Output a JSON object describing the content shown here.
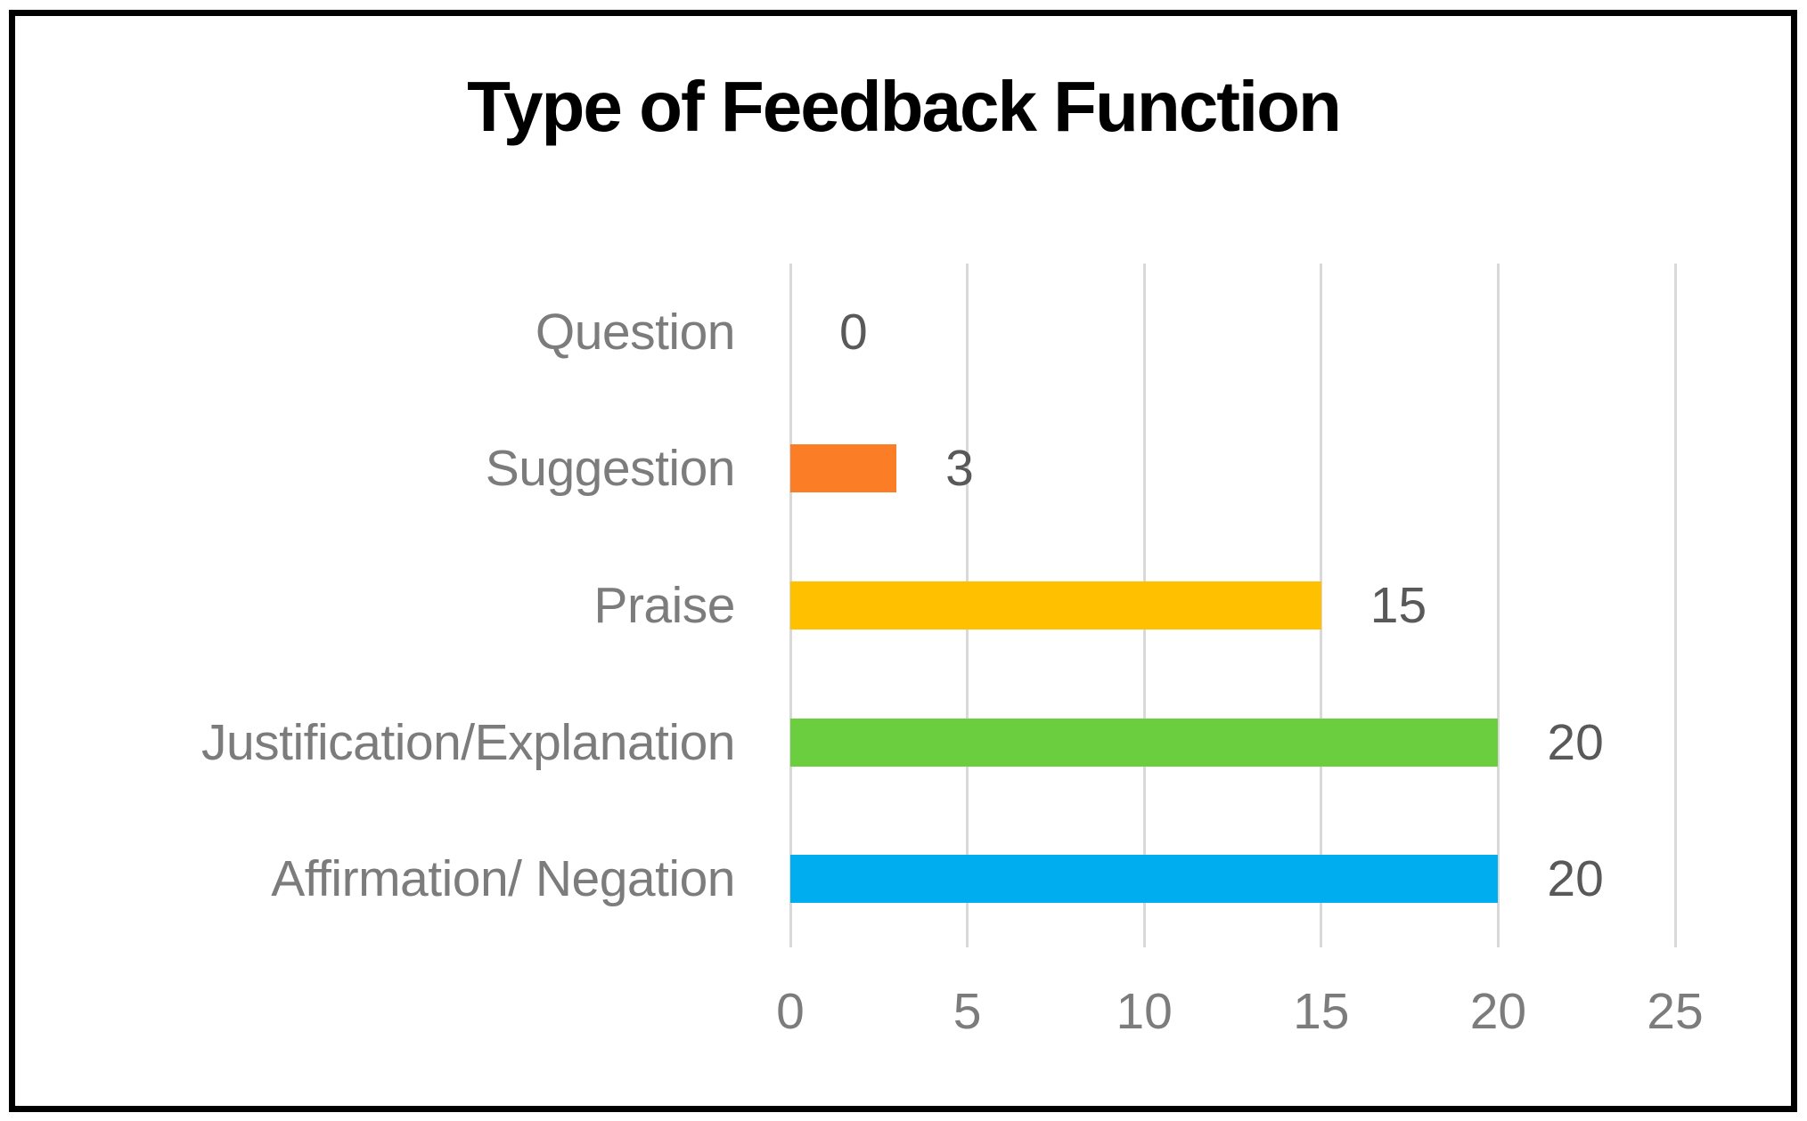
{
  "page": {
    "background": "#FFFFFF",
    "frame_border_color": "#000000"
  },
  "chart_data": {
    "type": "bar",
    "orientation": "horizontal",
    "title": "Type of Feedback Function",
    "title_color": "#000000",
    "categories": [
      "Question",
      "Suggestion",
      "Praise",
      "Justification/Explanation",
      "Affirmation/ Negation"
    ],
    "values": [
      0,
      3,
      15,
      20,
      20
    ],
    "data_labels": [
      "0",
      "3",
      "15",
      "20",
      "20"
    ],
    "bar_colors": [
      null,
      "#FB7D26",
      "#FFC000",
      "#6BCE3E",
      "#00AEEF"
    ],
    "x_ticks": [
      "0",
      "5",
      "10",
      "15",
      "20",
      "25"
    ],
    "xlim": [
      0,
      25
    ],
    "grid": true,
    "gridline_color": "#D9D9D9",
    "category_label_color": "#7C7C7C",
    "tick_label_color": "#7C7C7C",
    "data_label_color": "#595959",
    "legend": "none",
    "xlabel": "",
    "ylabel": ""
  }
}
